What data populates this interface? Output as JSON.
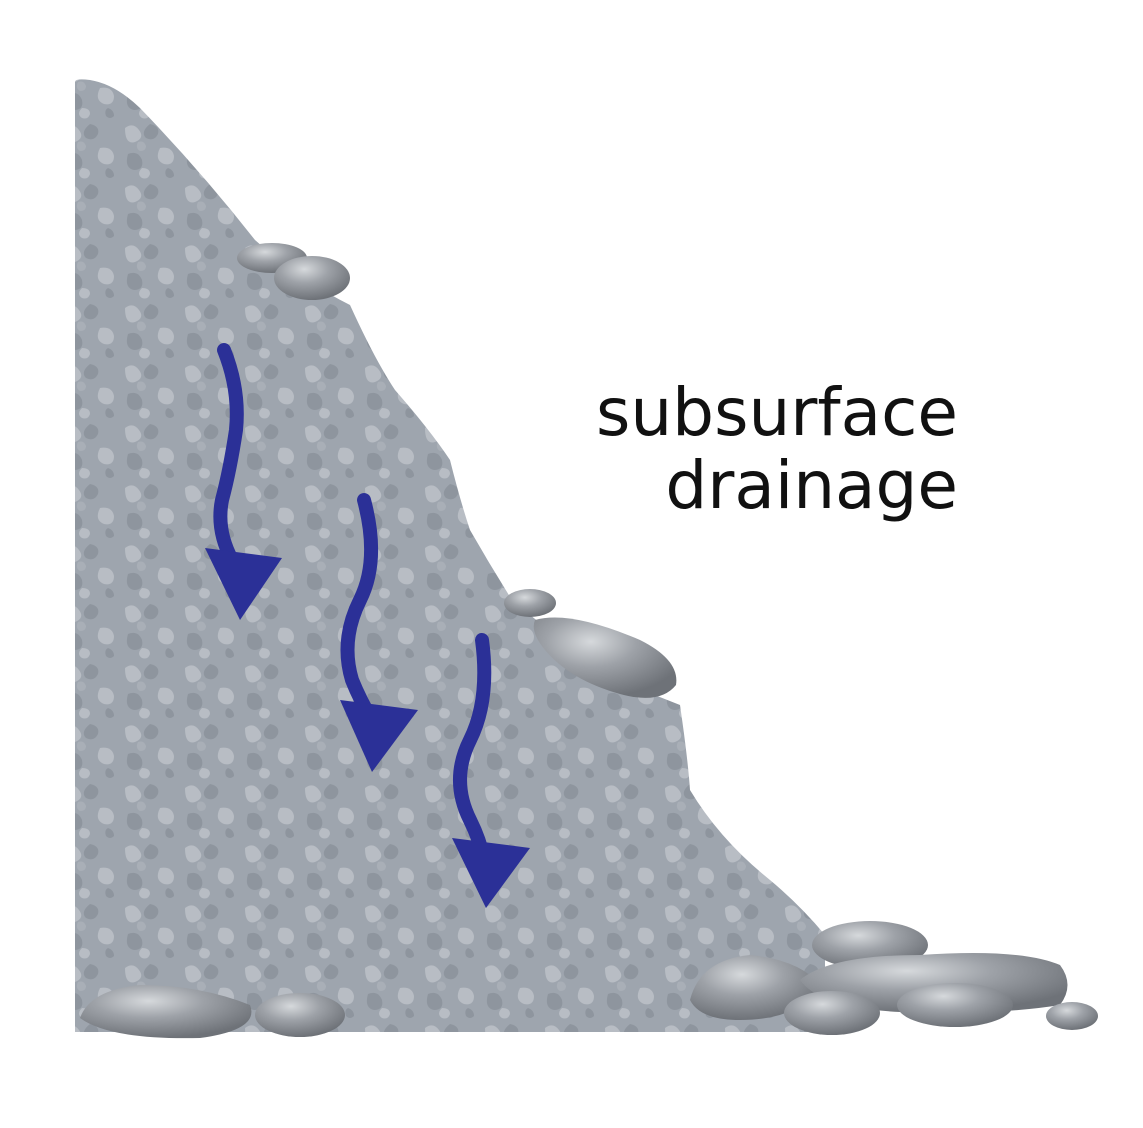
{
  "label": {
    "line1": "subsurface",
    "line2": "drainage"
  },
  "colors": {
    "background": "#ffffff",
    "slope_fill": "#9aa1aa",
    "slope_mottle": "#b4bac2",
    "rock_fill": "#8f9399",
    "rock_highlight": "#c9ccd0",
    "arrow": "#2b3097",
    "text": "#111111"
  },
  "arrows": {
    "count": 3,
    "direction": "down"
  }
}
